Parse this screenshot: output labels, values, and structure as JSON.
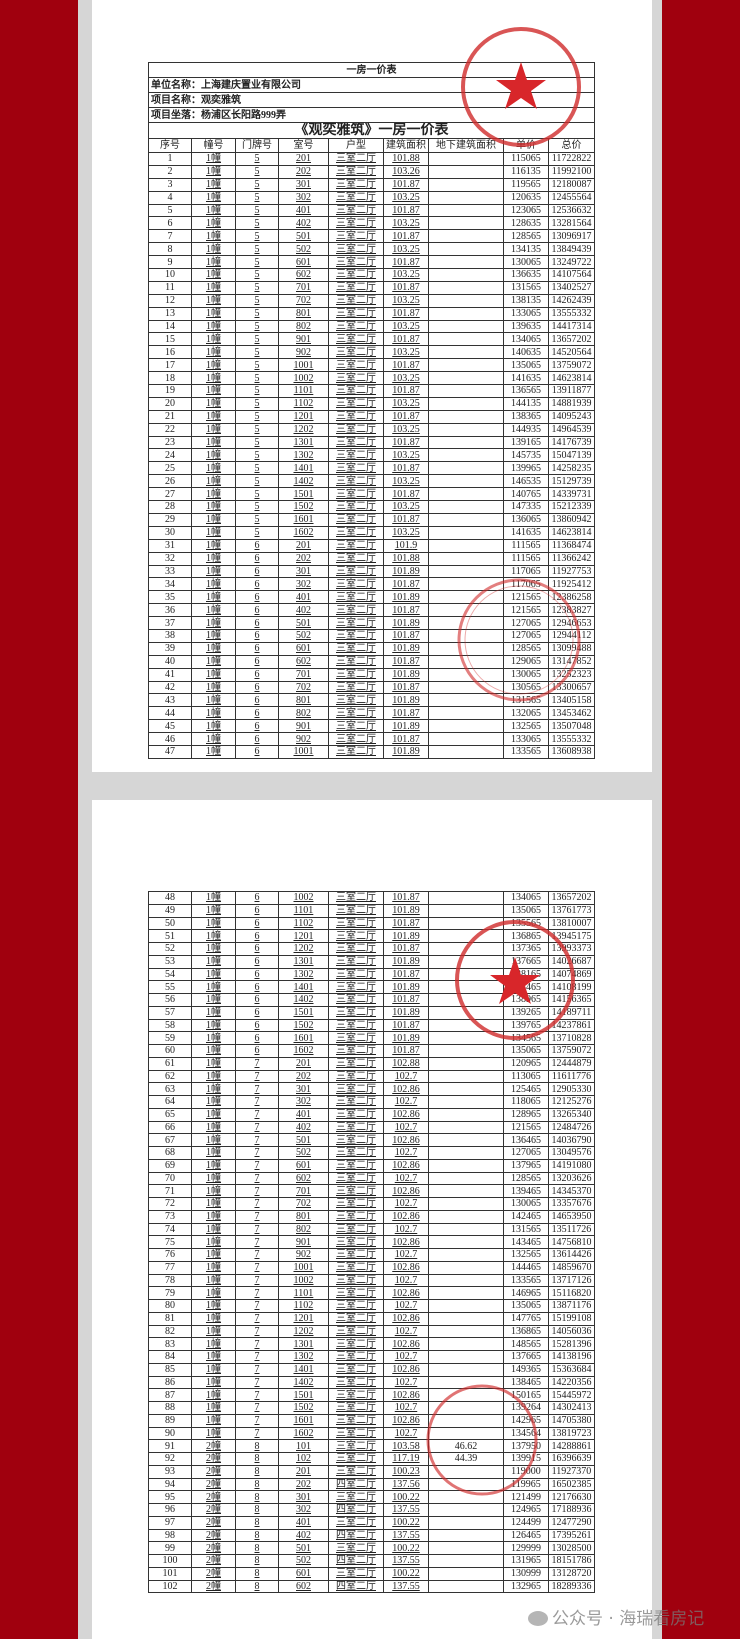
{
  "watermark": "公众号 · 海瑞看房记",
  "colors": {
    "background_red": "#a0000e",
    "stamp_red": "#d02a2a"
  },
  "header": {
    "title": "一房一价表",
    "company": "单位名称：上海建庆置业有限公司",
    "project": "项目名称：观奕雅筑",
    "location": "项目坐落：杨浦区长阳路999弄",
    "table_title": "《观奕雅筑》一房一价表"
  },
  "columns": [
    "序号",
    "幢号",
    "门牌号",
    "室号",
    "户型",
    "建筑面积",
    "地下建筑面积",
    "单价",
    "总价"
  ],
  "rows": [
    [
      "1",
      "1幢",
      "5",
      "201",
      "三室二厅",
      "101.88",
      "",
      "115065",
      "11722822"
    ],
    [
      "2",
      "1幢",
      "5",
      "202",
      "三室二厅",
      "103.26",
      "",
      "116135",
      "11992100"
    ],
    [
      "3",
      "1幢",
      "5",
      "301",
      "三室二厅",
      "101.87",
      "",
      "119565",
      "12180087"
    ],
    [
      "4",
      "1幢",
      "5",
      "302",
      "三室二厅",
      "103.25",
      "",
      "120635",
      "12455564"
    ],
    [
      "5",
      "1幢",
      "5",
      "401",
      "三室二厅",
      "101.87",
      "",
      "123065",
      "12536632"
    ],
    [
      "6",
      "1幢",
      "5",
      "402",
      "三室二厅",
      "103.25",
      "",
      "128635",
      "13281564"
    ],
    [
      "7",
      "1幢",
      "5",
      "501",
      "三室二厅",
      "101.87",
      "",
      "128565",
      "13096917"
    ],
    [
      "8",
      "1幢",
      "5",
      "502",
      "三室二厅",
      "103.25",
      "",
      "134135",
      "13849439"
    ],
    [
      "9",
      "1幢",
      "5",
      "601",
      "三室二厅",
      "101.87",
      "",
      "130065",
      "13249722"
    ],
    [
      "10",
      "1幢",
      "5",
      "602",
      "三室二厅",
      "103.25",
      "",
      "136635",
      "14107564"
    ],
    [
      "11",
      "1幢",
      "5",
      "701",
      "三室二厅",
      "101.87",
      "",
      "131565",
      "13402527"
    ],
    [
      "12",
      "1幢",
      "5",
      "702",
      "三室二厅",
      "103.25",
      "",
      "138135",
      "14262439"
    ],
    [
      "13",
      "1幢",
      "5",
      "801",
      "三室二厅",
      "101.87",
      "",
      "133065",
      "13555332"
    ],
    [
      "14",
      "1幢",
      "5",
      "802",
      "三室二厅",
      "103.25",
      "",
      "139635",
      "14417314"
    ],
    [
      "15",
      "1幢",
      "5",
      "901",
      "三室二厅",
      "101.87",
      "",
      "134065",
      "13657202"
    ],
    [
      "16",
      "1幢",
      "5",
      "902",
      "三室二厅",
      "103.25",
      "",
      "140635",
      "14520564"
    ],
    [
      "17",
      "1幢",
      "5",
      "1001",
      "三室二厅",
      "101.87",
      "",
      "135065",
      "13759072"
    ],
    [
      "18",
      "1幢",
      "5",
      "1002",
      "三室二厅",
      "103.25",
      "",
      "141635",
      "14623814"
    ],
    [
      "19",
      "1幢",
      "5",
      "1101",
      "三室二厅",
      "101.87",
      "",
      "136565",
      "13911877"
    ],
    [
      "20",
      "1幢",
      "5",
      "1102",
      "三室二厅",
      "103.25",
      "",
      "144135",
      "14881939"
    ],
    [
      "21",
      "1幢",
      "5",
      "1201",
      "三室二厅",
      "101.87",
      "",
      "138365",
      "14095243"
    ],
    [
      "22",
      "1幢",
      "5",
      "1202",
      "三室二厅",
      "103.25",
      "",
      "144935",
      "14964539"
    ],
    [
      "23",
      "1幢",
      "5",
      "1301",
      "三室二厅",
      "101.87",
      "",
      "139165",
      "14176739"
    ],
    [
      "24",
      "1幢",
      "5",
      "1302",
      "三室二厅",
      "103.25",
      "",
      "145735",
      "15047139"
    ],
    [
      "25",
      "1幢",
      "5",
      "1401",
      "三室二厅",
      "101.87",
      "",
      "139965",
      "14258235"
    ],
    [
      "26",
      "1幢",
      "5",
      "1402",
      "三室二厅",
      "103.25",
      "",
      "146535",
      "15129739"
    ],
    [
      "27",
      "1幢",
      "5",
      "1501",
      "三室二厅",
      "101.87",
      "",
      "140765",
      "14339731"
    ],
    [
      "28",
      "1幢",
      "5",
      "1502",
      "三室二厅",
      "103.25",
      "",
      "147335",
      "15212339"
    ],
    [
      "29",
      "1幢",
      "5",
      "1601",
      "三室二厅",
      "101.87",
      "",
      "136065",
      "13860942"
    ],
    [
      "30",
      "1幢",
      "5",
      "1602",
      "三室二厅",
      "103.25",
      "",
      "141635",
      "14623814"
    ],
    [
      "31",
      "1幢",
      "6",
      "201",
      "三室二厅",
      "101.9",
      "",
      "111565",
      "11368474"
    ],
    [
      "32",
      "1幢",
      "6",
      "202",
      "三室二厅",
      "101.88",
      "",
      "111565",
      "11366242"
    ],
    [
      "33",
      "1幢",
      "6",
      "301",
      "三室二厅",
      "101.89",
      "",
      "117065",
      "11927753"
    ],
    [
      "34",
      "1幢",
      "6",
      "302",
      "三室二厅",
      "101.87",
      "",
      "117065",
      "11925412"
    ],
    [
      "35",
      "1幢",
      "6",
      "401",
      "三室二厅",
      "101.89",
      "",
      "121565",
      "12386258"
    ],
    [
      "36",
      "1幢",
      "6",
      "402",
      "三室二厅",
      "101.87",
      "",
      "121565",
      "12383827"
    ],
    [
      "37",
      "1幢",
      "6",
      "501",
      "三室二厅",
      "101.89",
      "",
      "127065",
      "12946653"
    ],
    [
      "38",
      "1幢",
      "6",
      "502",
      "三室二厅",
      "101.87",
      "",
      "127065",
      "12944112"
    ],
    [
      "39",
      "1幢",
      "6",
      "601",
      "三室二厅",
      "101.89",
      "",
      "128565",
      "13099488"
    ],
    [
      "40",
      "1幢",
      "6",
      "602",
      "三室二厅",
      "101.87",
      "",
      "129065",
      "13147852"
    ],
    [
      "41",
      "1幢",
      "6",
      "701",
      "三室二厅",
      "101.89",
      "",
      "130065",
      "13252323"
    ],
    [
      "42",
      "1幢",
      "6",
      "702",
      "三室二厅",
      "101.87",
      "",
      "130565",
      "13300657"
    ],
    [
      "43",
      "1幢",
      "6",
      "801",
      "三室二厅",
      "101.89",
      "",
      "131565",
      "13405158"
    ],
    [
      "44",
      "1幢",
      "6",
      "802",
      "三室二厅",
      "101.87",
      "",
      "132065",
      "13453462"
    ],
    [
      "45",
      "1幢",
      "6",
      "901",
      "三室二厅",
      "101.89",
      "",
      "132565",
      "13507048"
    ],
    [
      "46",
      "1幢",
      "6",
      "902",
      "三室二厅",
      "101.87",
      "",
      "133065",
      "13555332"
    ],
    [
      "47",
      "1幢",
      "6",
      "1001",
      "三室二厅",
      "101.89",
      "",
      "133565",
      "13608938"
    ],
    [
      "48",
      "1幢",
      "6",
      "1002",
      "三室二厅",
      "101.87",
      "",
      "134065",
      "13657202"
    ],
    [
      "49",
      "1幢",
      "6",
      "1101",
      "三室二厅",
      "101.89",
      "",
      "135065",
      "13761773"
    ],
    [
      "50",
      "1幢",
      "6",
      "1102",
      "三室二厅",
      "101.87",
      "",
      "135565",
      "13810007"
    ],
    [
      "51",
      "1幢",
      "6",
      "1201",
      "三室二厅",
      "101.89",
      "",
      "136865",
      "13945175"
    ],
    [
      "52",
      "1幢",
      "6",
      "1202",
      "三室二厅",
      "101.87",
      "",
      "137365",
      "13993373"
    ],
    [
      "53",
      "1幢",
      "6",
      "1301",
      "三室二厅",
      "101.89",
      "",
      "137665",
      "14026687"
    ],
    [
      "54",
      "1幢",
      "6",
      "1302",
      "三室二厅",
      "101.87",
      "",
      "138165",
      "14074869"
    ],
    [
      "55",
      "1幢",
      "6",
      "1401",
      "三室二厅",
      "101.89",
      "",
      "138465",
      "14108199"
    ],
    [
      "56",
      "1幢",
      "6",
      "1402",
      "三室二厅",
      "101.87",
      "",
      "138965",
      "14156365"
    ],
    [
      "57",
      "1幢",
      "6",
      "1501",
      "三室二厅",
      "101.89",
      "",
      "139265",
      "14189711"
    ],
    [
      "58",
      "1幢",
      "6",
      "1502",
      "三室二厅",
      "101.87",
      "",
      "139765",
      "14237861"
    ],
    [
      "59",
      "1幢",
      "6",
      "1601",
      "三室二厅",
      "101.89",
      "",
      "134565",
      "13710828"
    ],
    [
      "60",
      "1幢",
      "6",
      "1602",
      "三室二厅",
      "101.87",
      "",
      "135065",
      "13759072"
    ],
    [
      "61",
      "1幢",
      "7",
      "201",
      "三室二厅",
      "102.88",
      "",
      "120965",
      "12444879"
    ],
    [
      "62",
      "1幢",
      "7",
      "202",
      "三室二厅",
      "102.7",
      "",
      "113065",
      "11611776"
    ],
    [
      "63",
      "1幢",
      "7",
      "301",
      "三室二厅",
      "102.86",
      "",
      "125465",
      "12905330"
    ],
    [
      "64",
      "1幢",
      "7",
      "302",
      "三室二厅",
      "102.7",
      "",
      "118065",
      "12125276"
    ],
    [
      "65",
      "1幢",
      "7",
      "401",
      "三室二厅",
      "102.86",
      "",
      "128965",
      "13265340"
    ],
    [
      "66",
      "1幢",
      "7",
      "402",
      "三室二厅",
      "102.7",
      "",
      "121565",
      "12484726"
    ],
    [
      "67",
      "1幢",
      "7",
      "501",
      "三室二厅",
      "102.86",
      "",
      "136465",
      "14036790"
    ],
    [
      "68",
      "1幢",
      "7",
      "502",
      "三室二厅",
      "102.7",
      "",
      "127065",
      "13049576"
    ],
    [
      "69",
      "1幢",
      "7",
      "601",
      "三室二厅",
      "102.86",
      "",
      "137965",
      "14191080"
    ],
    [
      "70",
      "1幢",
      "7",
      "602",
      "三室二厅",
      "102.7",
      "",
      "128565",
      "13203626"
    ],
    [
      "71",
      "1幢",
      "7",
      "701",
      "三室二厅",
      "102.86",
      "",
      "139465",
      "14345370"
    ],
    [
      "72",
      "1幢",
      "7",
      "702",
      "三室二厅",
      "102.7",
      "",
      "130065",
      "13357676"
    ],
    [
      "73",
      "1幢",
      "7",
      "801",
      "三室二厅",
      "102.86",
      "",
      "142465",
      "14653950"
    ],
    [
      "74",
      "1幢",
      "7",
      "802",
      "三室二厅",
      "102.7",
      "",
      "131565",
      "13511726"
    ],
    [
      "75",
      "1幢",
      "7",
      "901",
      "三室二厅",
      "102.86",
      "",
      "143465",
      "14756810"
    ],
    [
      "76",
      "1幢",
      "7",
      "902",
      "三室二厅",
      "102.7",
      "",
      "132565",
      "13614426"
    ],
    [
      "77",
      "1幢",
      "7",
      "1001",
      "三室二厅",
      "102.86",
      "",
      "144465",
      "14859670"
    ],
    [
      "78",
      "1幢",
      "7",
      "1002",
      "三室二厅",
      "102.7",
      "",
      "133565",
      "13717126"
    ],
    [
      "79",
      "1幢",
      "7",
      "1101",
      "三室二厅",
      "102.86",
      "",
      "146965",
      "15116820"
    ],
    [
      "80",
      "1幢",
      "7",
      "1102",
      "三室二厅",
      "102.7",
      "",
      "135065",
      "13871176"
    ],
    [
      "81",
      "1幢",
      "7",
      "1201",
      "三室二厅",
      "102.86",
      "",
      "147765",
      "15199108"
    ],
    [
      "82",
      "1幢",
      "7",
      "1202",
      "三室二厅",
      "102.7",
      "",
      "136865",
      "14056036"
    ],
    [
      "83",
      "1幢",
      "7",
      "1301",
      "三室二厅",
      "102.86",
      "",
      "148565",
      "15281396"
    ],
    [
      "84",
      "1幢",
      "7",
      "1302",
      "三室二厅",
      "102.7",
      "",
      "137665",
      "14138196"
    ],
    [
      "85",
      "1幢",
      "7",
      "1401",
      "三室二厅",
      "102.86",
      "",
      "149365",
      "15363684"
    ],
    [
      "86",
      "1幢",
      "7",
      "1402",
      "三室二厅",
      "102.7",
      "",
      "138465",
      "14220356"
    ],
    [
      "87",
      "1幢",
      "7",
      "1501",
      "三室二厅",
      "102.86",
      "",
      "150165",
      "15445972"
    ],
    [
      "88",
      "1幢",
      "7",
      "1502",
      "三室二厅",
      "102.7",
      "",
      "139264",
      "14302413"
    ],
    [
      "89",
      "1幢",
      "7",
      "1601",
      "三室二厅",
      "102.86",
      "",
      "142965",
      "14705380"
    ],
    [
      "90",
      "1幢",
      "7",
      "1602",
      "三室二厅",
      "102.7",
      "",
      "134564",
      "13819723"
    ],
    [
      "91",
      "2幢",
      "8",
      "101",
      "三室二厅",
      "103.58",
      "46.62",
      "137950",
      "14288861"
    ],
    [
      "92",
      "2幢",
      "8",
      "102",
      "三室二厅",
      "117.19",
      "44.39",
      "139915",
      "16396639"
    ],
    [
      "93",
      "2幢",
      "8",
      "201",
      "三室二厅",
      "100.23",
      "",
      "119000",
      "11927370"
    ],
    [
      "94",
      "2幢",
      "8",
      "202",
      "四室二厅",
      "137.56",
      "",
      "119965",
      "16502385"
    ],
    [
      "95",
      "2幢",
      "8",
      "301",
      "三室二厅",
      "100.22",
      "",
      "121499",
      "12176630"
    ],
    [
      "96",
      "2幢",
      "8",
      "302",
      "四室二厅",
      "137.55",
      "",
      "124965",
      "17188936"
    ],
    [
      "97",
      "2幢",
      "8",
      "401",
      "三室二厅",
      "100.22",
      "",
      "124499",
      "12477290"
    ],
    [
      "98",
      "2幢",
      "8",
      "402",
      "四室二厅",
      "137.55",
      "",
      "126465",
      "17395261"
    ],
    [
      "99",
      "2幢",
      "8",
      "501",
      "三室二厅",
      "100.22",
      "",
      "129999",
      "13028500"
    ],
    [
      "100",
      "2幢",
      "8",
      "502",
      "四室二厅",
      "137.55",
      "",
      "131965",
      "18151786"
    ],
    [
      "101",
      "2幢",
      "8",
      "601",
      "三室二厅",
      "100.22",
      "",
      "130999",
      "13128720"
    ],
    [
      "102",
      "2幢",
      "8",
      "602",
      "四室二厅",
      "137.55",
      "",
      "132965",
      "18289336"
    ]
  ]
}
